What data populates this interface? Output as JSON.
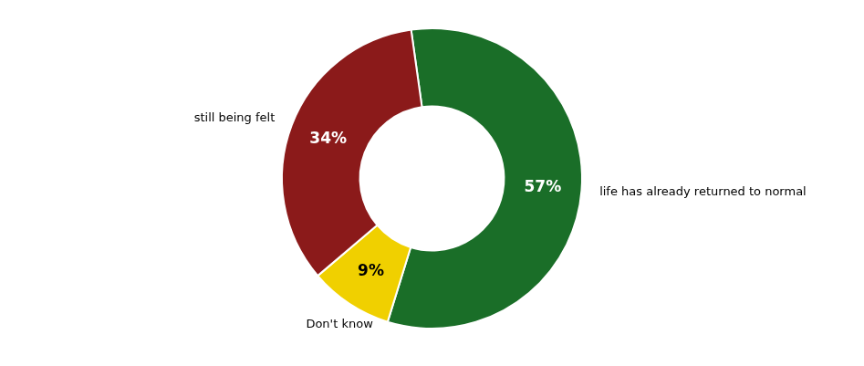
{
  "chart_data": {
    "type": "doughnut",
    "categories": [
      "life has already returned to normal",
      "Don't know",
      "still being felt"
    ],
    "values": [
      57,
      9,
      34
    ],
    "value_labels": [
      "57%",
      "9%",
      "34%"
    ],
    "colors": [
      "#1a6e28",
      "#f0d000",
      "#8b1a1a"
    ],
    "data_labels": true
  }
}
